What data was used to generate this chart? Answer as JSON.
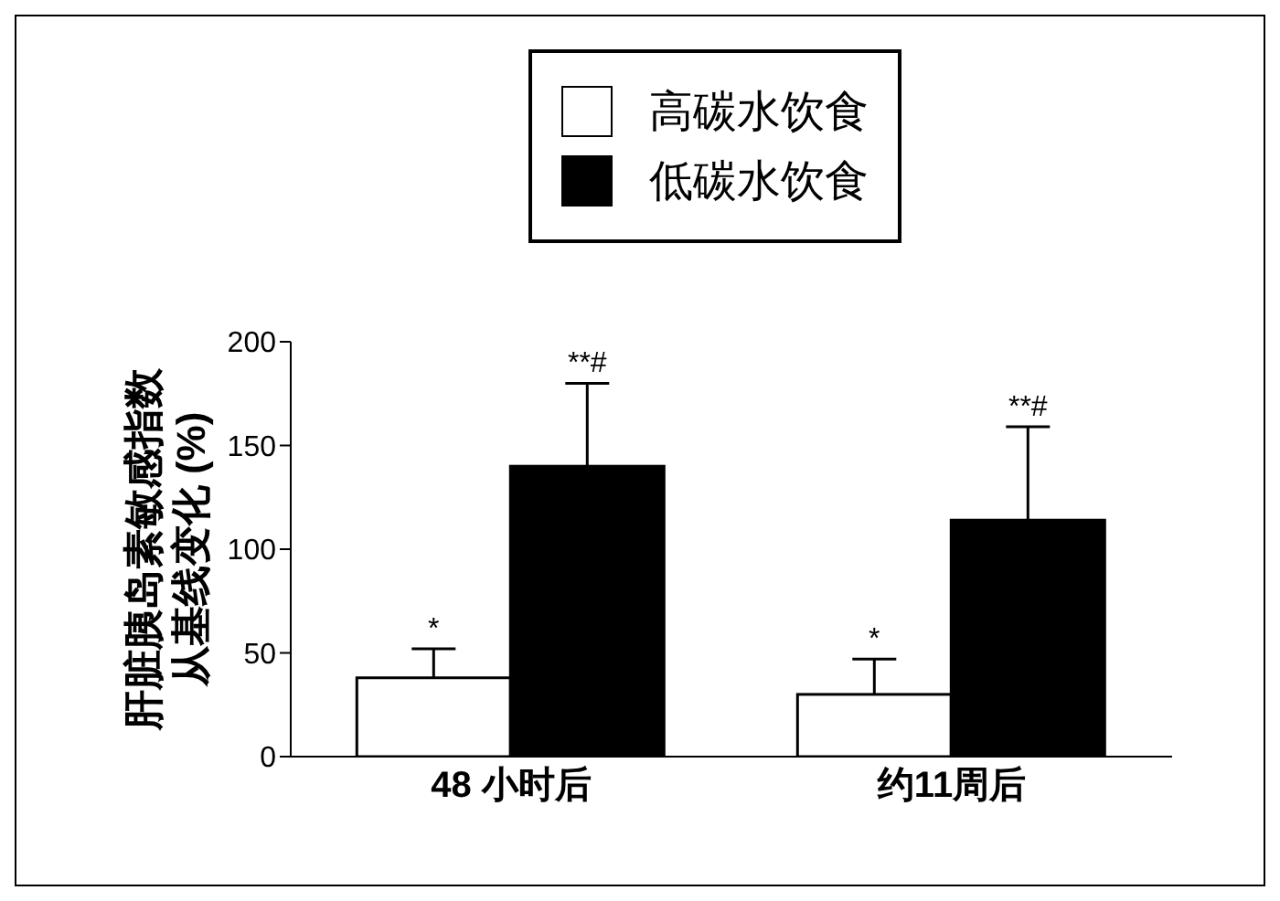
{
  "chart_data": {
    "type": "bar",
    "ylabel": "肝脏胰岛素敏感指数从基线变化 (%)",
    "categories": [
      "48 小时后",
      "约11周后"
    ],
    "series": [
      {
        "name": "高碳水饮食",
        "color": "#ffffff",
        "values": [
          38,
          30
        ],
        "errors": [
          [
            38,
            52
          ],
          [
            30,
            47
          ]
        ]
      },
      {
        "name": "低碳水饮食",
        "color": "#000000",
        "values": [
          140,
          114
        ],
        "errors": [
          [
            140,
            180
          ],
          [
            114,
            159
          ]
        ]
      }
    ],
    "ylim": [
      0,
      200
    ],
    "yticks": [
      0,
      50,
      100,
      150,
      200
    ],
    "grid": false,
    "legend": "top",
    "annotations": [
      {
        "text": "*",
        "x": "48 小时后",
        "y": 52
      },
      "**#",
      {
        "text": "*",
        "x": "约11周后",
        "y": 47
      },
      "**#"
    ]
  }
}
